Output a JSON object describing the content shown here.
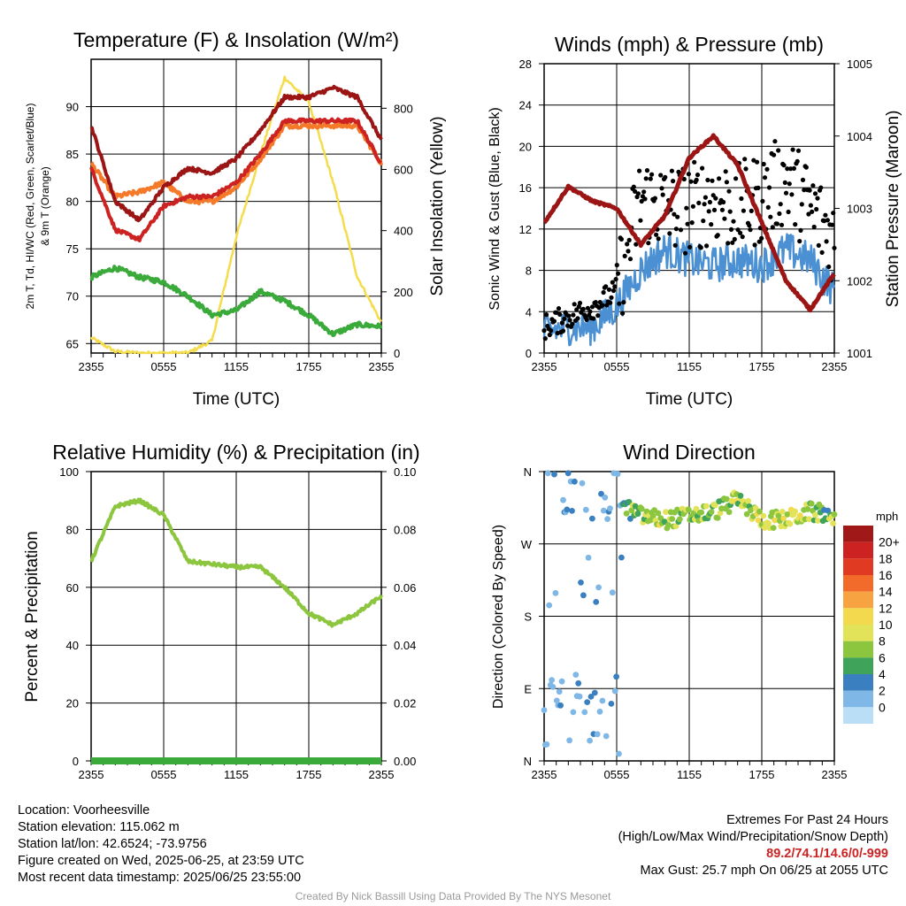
{
  "x_ticks": [
    "2355",
    "0555",
    "1155",
    "1755",
    "2355"
  ],
  "x_axis_label": "Time (UTC)",
  "panels": {
    "temperature": {
      "title": "Temperature (F) & Insolation (W/m²)",
      "ylabel_left_line1": "2m T, T",
      "ylabel_left_line2": "d",
      "ylabel_left_line3": ", HI/WC (Red, Green, Scarlet/Blue)",
      "ylabel_left_line4": "& 9m T (Orange)",
      "ylabel_right": "Solar Insolation (Yellow)",
      "yticks_left": [
        "65",
        "70",
        "75",
        "80",
        "85",
        "90"
      ],
      "yticks_right": [
        "0",
        "200",
        "400",
        "600",
        "800"
      ]
    },
    "winds": {
      "title": "Winds (mph) & Pressure (mb)",
      "ylabel_left": "Sonic Wind & Gust (Blue, Black)",
      "ylabel_right": "Station Pressure (Maroon)",
      "yticks_left": [
        "0",
        "4",
        "8",
        "12",
        "16",
        "20",
        "24",
        "28"
      ],
      "yticks_right": [
        "1001",
        "1002",
        "1003",
        "1004",
        "1005"
      ]
    },
    "humidity": {
      "title": "Relative Humidity (%) & Precipitation (in)",
      "ylabel_left": "Percent & Precipitation",
      "yticks_left": [
        "0",
        "20",
        "40",
        "60",
        "80",
        "100"
      ],
      "yticks_right": [
        "0.00",
        "0.02",
        "0.04",
        "0.06",
        "0.08",
        "0.10"
      ]
    },
    "direction": {
      "title": "Wind Direction",
      "ylabel_left": "Direction (Colored By Speed)",
      "yticks_left": [
        "N",
        "E",
        "S",
        "W",
        "N"
      ],
      "legend_unit": "mph",
      "legend_labels": [
        "20+",
        "18",
        "16",
        "14",
        "12",
        "10",
        "8",
        "6",
        "4",
        "2",
        "0"
      ],
      "legend_colors": [
        "#a01818",
        "#cc2222",
        "#e03a22",
        "#f26b2a",
        "#f7a341",
        "#f2d94e",
        "#e3e35a",
        "#8cc63f",
        "#3fa35a",
        "#3a7fbf",
        "#7fb8e6",
        "#b9def5"
      ]
    }
  },
  "chart_data": [
    {
      "type": "line",
      "title": "Temperature (F) & Insolation (W/m²)",
      "xlabel": "Time (UTC)",
      "x": [
        "2355",
        "0155",
        "0355",
        "0555",
        "0755",
        "0955",
        "1155",
        "1355",
        "1555",
        "1755",
        "1955",
        "2155",
        "2355"
      ],
      "ylim": [
        64,
        95
      ],
      "y2lim": [
        0,
        960
      ],
      "series": [
        {
          "color": "#cc2222",
          "values": [
            83.5,
            77,
            76,
            79.5,
            80.5,
            80.5,
            82,
            85,
            88.5,
            88.5,
            88.5,
            88.5,
            84
          ]
        },
        {
          "color": "#9b1515",
          "values": [
            88,
            80,
            78,
            81.5,
            83.5,
            83,
            84.5,
            87.5,
            91,
            91,
            92,
            91,
            86.5
          ]
        },
        {
          "color": "#3aaa3a",
          "values": [
            72,
            73,
            72,
            71.5,
            70,
            68,
            68.5,
            70.5,
            69.5,
            68,
            66,
            67,
            66.8
          ]
        },
        {
          "color": "#f47a2a",
          "values": [
            84,
            80.5,
            81,
            82,
            80,
            80,
            81.5,
            84.5,
            88,
            88,
            88,
            88,
            84
          ]
        },
        {
          "color": "#f5dc4a",
          "axis": "right",
          "values": [
            50,
            5,
            0,
            0,
            0,
            40,
            380,
            650,
            900,
            820,
            560,
            250,
            100
          ]
        }
      ]
    },
    {
      "type": "line",
      "title": "Winds (mph) & Pressure (mb)",
      "xlabel": "Time (UTC)",
      "x": [
        "2355",
        "0155",
        "0355",
        "0555",
        "0755",
        "0955",
        "1155",
        "1355",
        "1555",
        "1755",
        "1955",
        "2155",
        "2355"
      ],
      "ylim": [
        0,
        28
      ],
      "y2lim": [
        1001,
        1005
      ],
      "series": [
        {
          "color": "#4a90d2",
          "values": [
            2,
            2.5,
            2.5,
            4.5,
            8,
            10,
            9,
            8.5,
            9,
            8.5,
            10,
            9,
            6
          ]
        },
        {
          "color": "#000000",
          "values": [
            2.5,
            3.5,
            4.5,
            6,
            15,
            14,
            14,
            15,
            14,
            15,
            17,
            14,
            11
          ]
        },
        {
          "color": "#9b1515",
          "axis": "right",
          "values": [
            1002.8,
            1003.3,
            1003.1,
            1003,
            1002.5,
            1002.9,
            1003.7,
            1004,
            1003.6,
            1002.8,
            1002,
            1001.6,
            1002.1
          ]
        }
      ]
    },
    {
      "type": "line",
      "title": "Relative Humidity (%) & Precipitation (in)",
      "x": [
        "2355",
        "0155",
        "0355",
        "0555",
        "0755",
        "0955",
        "1155",
        "1355",
        "1555",
        "1755",
        "1955",
        "2155",
        "2355"
      ],
      "ylim": [
        0,
        100
      ],
      "y2lim": [
        0,
        0.1
      ],
      "series": [
        {
          "color": "#8cc63f",
          "values": [
            69,
            88,
            90,
            85,
            69,
            68,
            67,
            67,
            60,
            51,
            47,
            51,
            57
          ]
        },
        {
          "color": "#3aaa3a",
          "axis": "right",
          "values": [
            0,
            0,
            0,
            0,
            0,
            0,
            0,
            0,
            0,
            0,
            0,
            0,
            0
          ]
        }
      ]
    },
    {
      "type": "scatter",
      "title": "Wind Direction",
      "x": [
        "2355",
        "0155",
        "0355",
        "0555",
        "0755",
        "0955",
        "1155",
        "1355",
        "1555",
        "1755",
        "1955",
        "2155",
        "2355"
      ],
      "ylim": [
        0,
        360
      ],
      "y_values_deg": [
        160,
        250,
        100,
        320,
        305,
        300,
        305,
        310,
        325,
        300,
        300,
        310,
        305
      ],
      "speeds_mph": [
        2,
        2,
        3,
        3,
        9,
        9,
        8,
        8,
        9,
        9,
        10,
        8,
        7
      ]
    }
  ],
  "info_left": {
    "location": "Location: Voorheesville",
    "elevation": "Station elevation: 115.062 m",
    "latlon": "Station lat/lon: 42.6524; -73.9756",
    "created": "Figure created on Wed, 2025-06-25, at 23:59 UTC",
    "recent": "Most recent data timestamp: 2025/06/25 23:55:00"
  },
  "info_right": {
    "line1": "Extremes For Past 24 Hours",
    "line2": "(High/Low/Max Wind/Precipitation/Snow Depth)",
    "extremes": "89.2/74.1/14.6/0/-999",
    "gust": "Max Gust: 25.7 mph On 06/25 at 2055 UTC"
  },
  "credit": "Created By Nick Bassill Using Data Provided By The NYS Mesonet"
}
